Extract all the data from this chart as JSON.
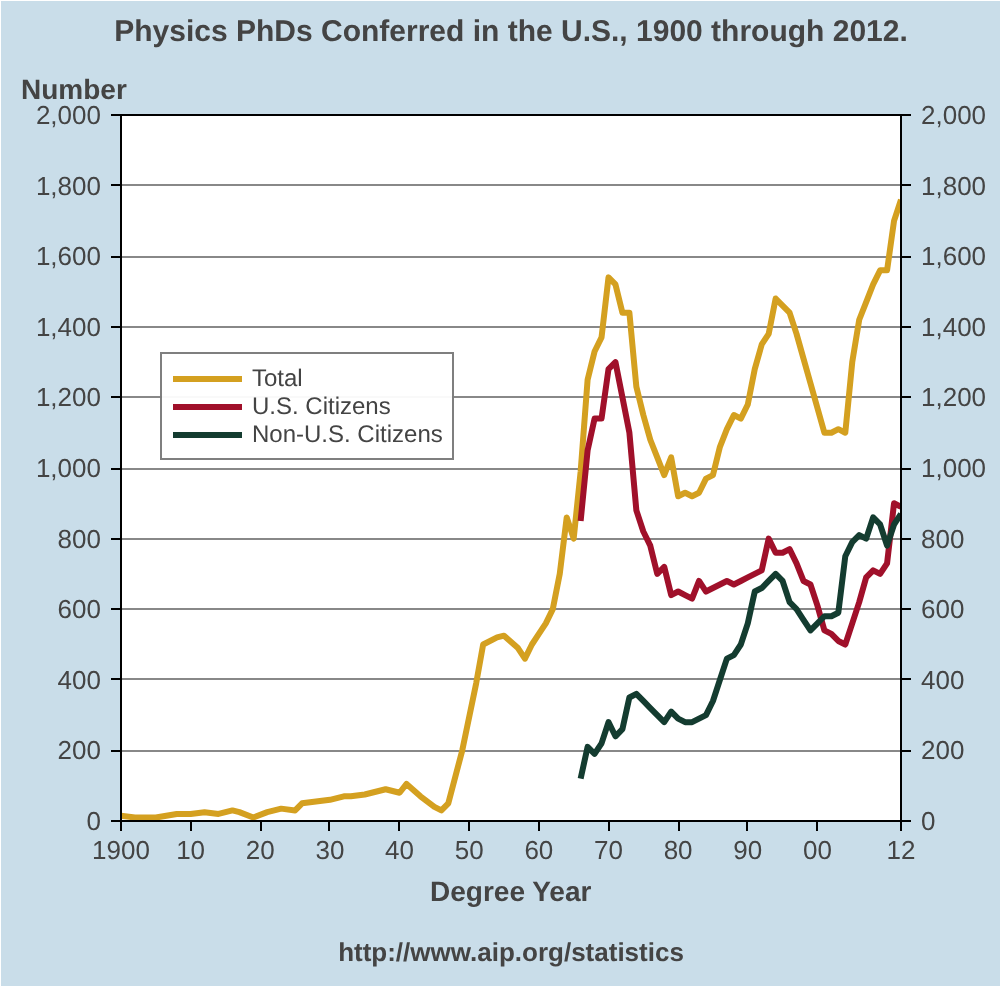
{
  "chart_data": {
    "type": "line",
    "title": "Physics PhDs Conferred in the U.S., 1900 through 2012.",
    "ylabel": "Number",
    "xlabel": "Degree Year",
    "annotations": [
      "http://www.aip.org/statistics"
    ],
    "xlim": [
      1900,
      2012
    ],
    "xticks": [
      {
        "value": 1900,
        "label": "1900"
      },
      {
        "value": 1910,
        "label": "10"
      },
      {
        "value": 1920,
        "label": "20"
      },
      {
        "value": 1930,
        "label": "30"
      },
      {
        "value": 1940,
        "label": "40"
      },
      {
        "value": 1950,
        "label": "50"
      },
      {
        "value": 1960,
        "label": "60"
      },
      {
        "value": 1970,
        "label": "70"
      },
      {
        "value": 1980,
        "label": "80"
      },
      {
        "value": 1990,
        "label": "90"
      },
      {
        "value": 2000,
        "label": "00"
      },
      {
        "value": 2012,
        "label": "12"
      }
    ],
    "ylim": [
      0,
      2000
    ],
    "yticks": [
      {
        "value": 0,
        "label": "0"
      },
      {
        "value": 200,
        "label": "200"
      },
      {
        "value": 400,
        "label": "400"
      },
      {
        "value": 600,
        "label": "600"
      },
      {
        "value": 800,
        "label": "800"
      },
      {
        "value": 1000,
        "label": "1,000"
      },
      {
        "value": 1200,
        "label": "1,200"
      },
      {
        "value": 1400,
        "label": "1,400"
      },
      {
        "value": 1600,
        "label": "1,600"
      },
      {
        "value": 1800,
        "label": "1,800"
      },
      {
        "value": 2000,
        "label": "2,000"
      }
    ],
    "y2lim": [
      0,
      2000
    ],
    "y2ticks": [
      {
        "value": 0,
        "label": "0"
      },
      {
        "value": 200,
        "label": "200"
      },
      {
        "value": 400,
        "label": "400"
      },
      {
        "value": 600,
        "label": "600"
      },
      {
        "value": 800,
        "label": "800"
      },
      {
        "value": 1000,
        "label": "1,000"
      },
      {
        "value": 1200,
        "label": "1,200"
      },
      {
        "value": 1400,
        "label": "1,400"
      },
      {
        "value": 1600,
        "label": "1,600"
      },
      {
        "value": 1800,
        "label": "1,800"
      },
      {
        "value": 2000,
        "label": "2,000"
      }
    ],
    "grid": "y",
    "legend": "left",
    "marker": "none",
    "line_style": "solid",
    "series": [
      {
        "name": "Total",
        "color": "#d4a020",
        "x": [
          1900,
          1902,
          1905,
          1908,
          1910,
          1912,
          1914,
          1916,
          1917,
          1919,
          1921,
          1923,
          1925,
          1926,
          1928,
          1930,
          1932,
          1933,
          1935,
          1936,
          1938,
          1940,
          1941,
          1943,
          1945,
          1946,
          1947,
          1949,
          1951,
          1952,
          1954,
          1955,
          1957,
          1958,
          1959,
          1960,
          1961,
          1962,
          1963,
          1964,
          1965,
          1966,
          1967,
          1968,
          1969,
          1970,
          1971,
          1972,
          1973,
          1974,
          1975,
          1976,
          1977,
          1978,
          1979,
          1980,
          1981,
          1982,
          1983,
          1984,
          1985,
          1986,
          1987,
          1988,
          1989,
          1990,
          1991,
          1992,
          1993,
          1994,
          1995,
          1996,
          1997,
          1998,
          1999,
          2000,
          2001,
          2002,
          2003,
          2004,
          2005,
          2006,
          2007,
          2008,
          2009,
          2010,
          2011,
          2012
        ],
        "values": [
          15,
          10,
          10,
          20,
          20,
          25,
          20,
          30,
          25,
          10,
          25,
          35,
          30,
          50,
          55,
          60,
          70,
          70,
          75,
          80,
          90,
          80,
          105,
          70,
          40,
          30,
          50,
          200,
          390,
          500,
          520,
          525,
          490,
          460,
          500,
          530,
          560,
          600,
          700,
          860,
          800,
          990,
          1250,
          1330,
          1370,
          1540,
          1520,
          1440,
          1440,
          1230,
          1150,
          1080,
          1030,
          980,
          1030,
          920,
          930,
          920,
          930,
          970,
          980,
          1060,
          1110,
          1150,
          1140,
          1180,
          1280,
          1350,
          1380,
          1480,
          1460,
          1440,
          1380,
          1310,
          1240,
          1170,
          1100,
          1100,
          1110,
          1100,
          1300,
          1420,
          1470,
          1520,
          1560,
          1560,
          1700,
          1760
        ]
      },
      {
        "name": "U.S. Citizens",
        "color": "#a0102a",
        "x": [
          1966,
          1967,
          1968,
          1969,
          1970,
          1971,
          1972,
          1973,
          1974,
          1975,
          1976,
          1977,
          1978,
          1979,
          1980,
          1981,
          1982,
          1983,
          1984,
          1985,
          1986,
          1987,
          1988,
          1989,
          1990,
          1991,
          1992,
          1993,
          1994,
          1995,
          1996,
          1997,
          1998,
          1999,
          2000,
          2001,
          2002,
          2003,
          2004,
          2005,
          2006,
          2007,
          2008,
          2009,
          2010,
          2011,
          2012
        ],
        "values": [
          850,
          1050,
          1140,
          1140,
          1280,
          1300,
          1200,
          1100,
          880,
          820,
          780,
          700,
          720,
          640,
          650,
          640,
          630,
          680,
          650,
          660,
          670,
          680,
          670,
          680,
          690,
          700,
          710,
          800,
          760,
          760,
          770,
          730,
          680,
          670,
          610,
          540,
          530,
          510,
          500,
          560,
          620,
          690,
          710,
          700,
          730,
          900,
          890
        ]
      },
      {
        "name": "Non-U.S. Citizens",
        "color": "#143c30",
        "x": [
          1966,
          1967,
          1968,
          1969,
          1970,
          1971,
          1972,
          1973,
          1974,
          1975,
          1976,
          1977,
          1978,
          1979,
          1980,
          1981,
          1982,
          1983,
          1984,
          1985,
          1986,
          1987,
          1988,
          1989,
          1990,
          1991,
          1992,
          1993,
          1994,
          1995,
          1996,
          1997,
          1998,
          1999,
          2000,
          2001,
          2002,
          2003,
          2004,
          2005,
          2006,
          2007,
          2008,
          2009,
          2010,
          2011,
          2012
        ],
        "values": [
          120,
          210,
          190,
          220,
          280,
          240,
          260,
          350,
          360,
          340,
          320,
          300,
          280,
          310,
          290,
          280,
          280,
          290,
          300,
          340,
          400,
          460,
          470,
          500,
          560,
          650,
          660,
          680,
          700,
          680,
          620,
          600,
          570,
          540,
          560,
          580,
          580,
          590,
          750,
          790,
          810,
          800,
          860,
          840,
          780,
          840,
          870
        ]
      }
    ]
  }
}
